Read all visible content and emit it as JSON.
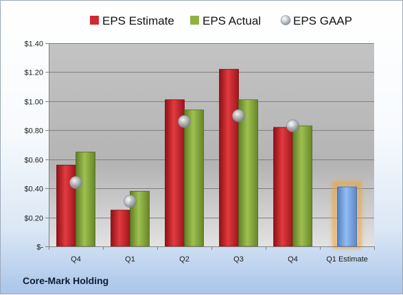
{
  "company": "Core-Mark Holding",
  "chart_data": {
    "type": "bar",
    "title": "",
    "xlabel": "",
    "ylabel": "",
    "categories": [
      "Q4",
      "Q1",
      "Q2",
      "Q3",
      "Q4",
      "Q1 Estimate"
    ],
    "ylim": [
      0,
      1.4
    ],
    "yticks": [
      0,
      0.2,
      0.4,
      0.6,
      0.8,
      1.0,
      1.2,
      1.4
    ],
    "ytick_labels": [
      "$-",
      "$0.20",
      "$0.40",
      "$0.60",
      "$0.80",
      "$1.00",
      "$1.20",
      "$1.40"
    ],
    "grid": true,
    "legend_position": "top",
    "series": [
      {
        "name": "EPS Estimate",
        "type": "bar",
        "color": "#cc2229",
        "values": [
          0.56,
          0.25,
          1.01,
          1.22,
          0.82,
          null
        ]
      },
      {
        "name": "EPS Actual",
        "type": "bar",
        "color": "#86a93e",
        "values": [
          0.65,
          0.38,
          0.94,
          1.01,
          0.83,
          null
        ]
      },
      {
        "name": "EPS GAAP",
        "type": "marker",
        "color": "#a9b0ba",
        "values": [
          0.44,
          0.31,
          0.86,
          0.9,
          0.83,
          null
        ]
      }
    ],
    "estimate_bar": {
      "category": "Q1 Estimate",
      "value": 0.41,
      "color": "#6d9de0",
      "glow": "#f0a030"
    }
  }
}
